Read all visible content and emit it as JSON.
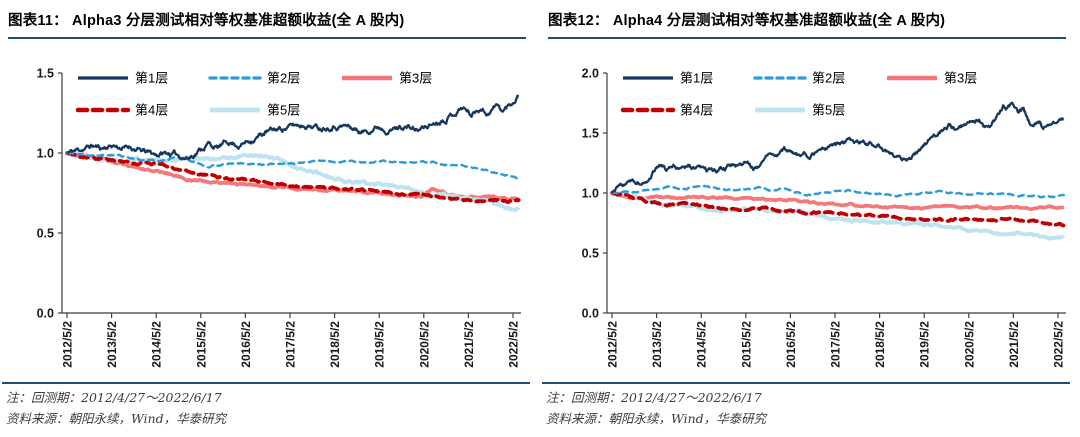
{
  "figures": [
    {
      "title": "图表11：  Alpha3 分层测试相对等权基准超额收益(全 A 股内)",
      "notes": [
        "注：回测期：2012/4/27～2022/6/17",
        "资料来源：朝阳永续，Wind，华泰研究"
      ]
    },
    {
      "title": "图表12：  Alpha4 分层测试相对等权基准超额收益(全 A 股内)",
      "notes": [
        "注：回测期：2012/4/27～2022/6/17",
        "资料来源：朝阳永续，Wind，华泰研究"
      ]
    }
  ],
  "colors": {
    "layer1": "#17375E",
    "layer2": "#2E9BD8",
    "layer3": "#F4787B",
    "layer4": "#C00000",
    "layer5": "#BDE2F0",
    "title_rule": "#1F4E79",
    "axis": "#3F3F3F",
    "note_text": "#3D3D3D"
  },
  "chart_data": [
    {
      "type": "line",
      "title": "Alpha3 分层测试相对等权基准超额收益(全 A 股内)",
      "xlabel": "",
      "ylabel": "",
      "grid": false,
      "legend_position": "top-left",
      "x_range": [
        "2012/4/27",
        "2022/6/17"
      ],
      "ylim": [
        0.0,
        1.5
      ],
      "y_tick_labels": [
        "0.0",
        "0.5",
        "1.0",
        "1.5"
      ],
      "x_tick_labels": [
        "2012/5/2",
        "2013/5/2",
        "2014/5/2",
        "2015/5/2",
        "2016/5/2",
        "2017/5/2",
        "2018/5/2",
        "2019/5/2",
        "2020/5/2",
        "2021/5/2",
        "2022/5/2"
      ],
      "series": [
        {
          "name": "第1层",
          "key": "layer-1",
          "color": "#17375E",
          "dash": "none",
          "width": 2.3,
          "noise": 0.011,
          "x": [
            2012.33,
            2012.6,
            2012.9,
            2013.1,
            2013.35,
            2013.6,
            2013.75,
            2014.0,
            2014.3,
            2014.6,
            2014.9,
            2015.05,
            2015.35,
            2015.5,
            2015.7,
            2015.95,
            2016.2,
            2016.5,
            2016.8,
            2017.1,
            2017.4,
            2017.7,
            2018.0,
            2018.3,
            2018.6,
            2018.95,
            2019.3,
            2019.6,
            2019.9,
            2020.2,
            2020.5,
            2020.8,
            2021.05,
            2021.2,
            2021.4,
            2021.6,
            2021.75,
            2021.95,
            2022.1,
            2022.3,
            2022.46
          ],
          "y": [
            1.0,
            1.02,
            1.045,
            1.03,
            1.05,
            1.03,
            1.04,
            1.01,
            0.99,
            1.0,
            0.98,
            0.97,
            1.03,
            1.06,
            1.03,
            1.07,
            1.05,
            1.09,
            1.13,
            1.15,
            1.17,
            1.18,
            1.16,
            1.18,
            1.17,
            1.13,
            1.17,
            1.15,
            1.17,
            1.14,
            1.18,
            1.22,
            1.26,
            1.29,
            1.24,
            1.29,
            1.25,
            1.3,
            1.26,
            1.31,
            1.37
          ]
        },
        {
          "name": "第2层",
          "key": "layer-2",
          "color": "#2E9BD8",
          "dash": "6 5",
          "width": 2.4,
          "noise": 0.003,
          "x": [
            2012.33,
            2012.7,
            2013.0,
            2013.3,
            2013.7,
            2014.0,
            2014.4,
            2014.8,
            2015.1,
            2015.5,
            2015.9,
            2016.3,
            2016.7,
            2017.1,
            2017.5,
            2017.9,
            2018.3,
            2018.7,
            2019.1,
            2019.5,
            2019.9,
            2020.3,
            2020.6,
            2020.9,
            2021.2,
            2021.6,
            2021.9,
            2022.2,
            2022.46
          ],
          "y": [
            1.0,
            0.99,
            0.98,
            0.99,
            0.97,
            0.96,
            0.95,
            0.97,
            0.95,
            0.915,
            0.93,
            0.94,
            0.93,
            0.93,
            0.94,
            0.95,
            0.94,
            0.95,
            0.94,
            0.95,
            0.94,
            0.95,
            0.94,
            0.92,
            0.92,
            0.9,
            0.88,
            0.86,
            0.84
          ]
        },
        {
          "name": "第3层",
          "key": "layer-3",
          "color": "#F4787B",
          "dash": "none",
          "width": 3.6,
          "noise": 0.004,
          "x": [
            2012.33,
            2012.6,
            2012.9,
            2013.2,
            2013.5,
            2013.8,
            2014.1,
            2014.4,
            2014.7,
            2015.0,
            2015.3,
            2015.6,
            2016.0,
            2016.4,
            2016.8,
            2017.2,
            2017.6,
            2018.0,
            2018.4,
            2018.8,
            2019.2,
            2019.6,
            2020.0,
            2020.3,
            2020.55,
            2020.8,
            2021.1,
            2021.5,
            2021.9,
            2022.2,
            2022.46
          ],
          "y": [
            1.0,
            0.99,
            0.97,
            0.96,
            0.94,
            0.92,
            0.9,
            0.88,
            0.86,
            0.84,
            0.83,
            0.82,
            0.81,
            0.8,
            0.79,
            0.78,
            0.775,
            0.77,
            0.765,
            0.76,
            0.75,
            0.74,
            0.735,
            0.73,
            0.78,
            0.75,
            0.73,
            0.72,
            0.72,
            0.71,
            0.72
          ]
        },
        {
          "name": "第4层",
          "key": "layer-4",
          "color": "#C00000",
          "dash": "9 6",
          "width": 3.6,
          "noise": 0.004,
          "x": [
            2012.33,
            2012.6,
            2012.9,
            2013.2,
            2013.5,
            2013.8,
            2014.1,
            2014.4,
            2014.7,
            2015.0,
            2015.3,
            2015.6,
            2016.0,
            2016.4,
            2016.8,
            2017.2,
            2017.6,
            2018.0,
            2018.4,
            2018.8,
            2019.2,
            2019.6,
            2020.0,
            2020.4,
            2020.8,
            2021.2,
            2021.6,
            2021.9,
            2022.2,
            2022.46
          ],
          "y": [
            1.0,
            0.98,
            0.965,
            0.96,
            0.95,
            0.94,
            0.94,
            0.93,
            0.91,
            0.89,
            0.87,
            0.85,
            0.84,
            0.83,
            0.82,
            0.8,
            0.79,
            0.785,
            0.78,
            0.77,
            0.765,
            0.755,
            0.75,
            0.74,
            0.72,
            0.71,
            0.7,
            0.71,
            0.7,
            0.7
          ]
        },
        {
          "name": "第5层",
          "key": "layer-5",
          "color": "#BDE2F0",
          "dash": "none",
          "width": 3.8,
          "noise": 0.005,
          "x": [
            2012.33,
            2012.7,
            2013.1,
            2013.5,
            2013.9,
            2014.3,
            2014.7,
            2015.1,
            2015.5,
            2015.9,
            2016.3,
            2016.6,
            2016.9,
            2017.1,
            2017.4,
            2017.7,
            2018.0,
            2018.3,
            2018.6,
            2019.0,
            2019.4,
            2019.8,
            2020.1,
            2020.4,
            2020.7,
            2021.0,
            2021.3,
            2021.7,
            2022.0,
            2022.2,
            2022.35,
            2022.46
          ],
          "y": [
            1.0,
            0.98,
            0.96,
            0.95,
            0.96,
            0.95,
            0.96,
            0.97,
            0.96,
            0.97,
            0.98,
            0.99,
            0.98,
            0.96,
            0.92,
            0.89,
            0.87,
            0.84,
            0.82,
            0.81,
            0.8,
            0.79,
            0.77,
            0.73,
            0.74,
            0.73,
            0.72,
            0.7,
            0.68,
            0.65,
            0.64,
            0.65
          ]
        }
      ]
    },
    {
      "type": "line",
      "title": "Alpha4 分层测试相对等权基准超额收益(全 A 股内)",
      "xlabel": "",
      "ylabel": "",
      "grid": false,
      "legend_position": "top-left",
      "x_range": [
        "2012/4/27",
        "2022/6/17"
      ],
      "ylim": [
        0.0,
        2.0
      ],
      "y_tick_labels": [
        "0.0",
        "0.5",
        "1.0",
        "1.5",
        "2.0"
      ],
      "x_tick_labels": [
        "2012/5/2",
        "2013/5/2",
        "2014/5/2",
        "2015/5/2",
        "2016/5/2",
        "2017/5/2",
        "2018/5/2",
        "2019/5/2",
        "2020/5/2",
        "2021/5/2",
        "2022/5/2"
      ],
      "series": [
        {
          "name": "第1层",
          "key": "layer-1",
          "color": "#17375E",
          "dash": "none",
          "width": 2.3,
          "noise": 0.013,
          "x": [
            2012.33,
            2012.6,
            2012.9,
            2013.1,
            2013.25,
            2013.4,
            2013.55,
            2013.8,
            2014.0,
            2014.3,
            2014.6,
            2014.9,
            2015.1,
            2015.35,
            2015.5,
            2015.8,
            2016.0,
            2016.2,
            2016.5,
            2016.8,
            2017.0,
            2017.4,
            2017.75,
            2018.1,
            2018.5,
            2018.8,
            2019.0,
            2019.3,
            2019.55,
            2019.9,
            2020.1,
            2020.35,
            2020.55,
            2020.7,
            2020.9,
            2021.1,
            2021.3,
            2021.45,
            2021.55,
            2021.65,
            2021.78,
            2021.9,
            2022.0,
            2022.15,
            2022.46
          ],
          "y": [
            1.0,
            1.06,
            1.09,
            1.12,
            1.18,
            1.25,
            1.2,
            1.22,
            1.23,
            1.2,
            1.17,
            1.2,
            1.23,
            1.25,
            1.19,
            1.29,
            1.31,
            1.34,
            1.32,
            1.33,
            1.35,
            1.4,
            1.44,
            1.41,
            1.35,
            1.3,
            1.29,
            1.38,
            1.48,
            1.56,
            1.53,
            1.58,
            1.62,
            1.54,
            1.6,
            1.72,
            1.73,
            1.64,
            1.68,
            1.6,
            1.53,
            1.58,
            1.53,
            1.58,
            1.62
          ]
        },
        {
          "name": "第2层",
          "key": "layer-2",
          "color": "#2E9BD8",
          "dash": "6 5",
          "width": 2.4,
          "noise": 0.004,
          "x": [
            2012.33,
            2012.8,
            2013.0,
            2013.6,
            2014.0,
            2014.4,
            2014.8,
            2015.2,
            2015.6,
            2016.0,
            2016.2,
            2016.7,
            2017.2,
            2017.6,
            2018.0,
            2018.4,
            2018.8,
            2019.2,
            2019.6,
            2020.0,
            2020.4,
            2020.8,
            2021.2,
            2021.6,
            2022.0,
            2022.46
          ],
          "y": [
            1.0,
            1.01,
            1.02,
            1.05,
            1.03,
            1.06,
            1.03,
            1.02,
            1.04,
            1.02,
            1.04,
            0.98,
            1.0,
            1.02,
            1.0,
            0.99,
            0.98,
            0.99,
            1.01,
            1.0,
            0.99,
            1.0,
            0.99,
            0.98,
            0.97,
            0.97
          ]
        },
        {
          "name": "第3层",
          "key": "layer-3",
          "color": "#F4787B",
          "dash": "none",
          "width": 3.6,
          "noise": 0.004,
          "x": [
            2012.33,
            2012.8,
            2013.3,
            2013.8,
            2014.3,
            2014.8,
            2015.3,
            2015.8,
            2016.3,
            2016.8,
            2017.3,
            2017.8,
            2018.3,
            2018.8,
            2019.3,
            2019.8,
            2020.3,
            2020.8,
            2021.3,
            2021.8,
            2022.1,
            2022.46
          ],
          "y": [
            1.0,
            0.95,
            0.97,
            0.96,
            0.965,
            0.96,
            0.96,
            0.95,
            0.94,
            0.92,
            0.91,
            0.9,
            0.89,
            0.88,
            0.88,
            0.89,
            0.88,
            0.875,
            0.88,
            0.87,
            0.875,
            0.88
          ]
        },
        {
          "name": "第4层",
          "key": "layer-4",
          "color": "#C00000",
          "dash": "9 6",
          "width": 3.6,
          "noise": 0.005,
          "x": [
            2012.33,
            2012.7,
            2013.0,
            2013.3,
            2013.7,
            2014.1,
            2014.5,
            2014.9,
            2015.3,
            2015.7,
            2016.1,
            2016.5,
            2017.0,
            2017.5,
            2017.9,
            2018.3,
            2018.8,
            2019.2,
            2019.6,
            2020.0,
            2020.4,
            2020.8,
            2021.2,
            2021.6,
            2021.9,
            2022.2,
            2022.46
          ],
          "y": [
            1.0,
            0.97,
            0.94,
            0.92,
            0.9,
            0.91,
            0.89,
            0.87,
            0.86,
            0.87,
            0.85,
            0.84,
            0.83,
            0.83,
            0.82,
            0.81,
            0.8,
            0.79,
            0.77,
            0.78,
            0.78,
            0.77,
            0.78,
            0.77,
            0.76,
            0.74,
            0.73
          ]
        },
        {
          "name": "第5层",
          "key": "layer-5",
          "color": "#BDE2F0",
          "dash": "none",
          "width": 3.8,
          "noise": 0.006,
          "x": [
            2012.33,
            2012.7,
            2013.1,
            2013.5,
            2013.9,
            2014.3,
            2014.7,
            2015.1,
            2015.5,
            2015.9,
            2016.3,
            2016.7,
            2017.1,
            2017.5,
            2017.9,
            2018.3,
            2018.7,
            2019.1,
            2019.5,
            2019.9,
            2020.3,
            2020.7,
            2021.1,
            2021.4,
            2021.8,
            2022.1,
            2022.3,
            2022.46
          ],
          "y": [
            1.0,
            0.97,
            0.94,
            0.91,
            0.89,
            0.87,
            0.85,
            0.86,
            0.87,
            0.85,
            0.84,
            0.83,
            0.8,
            0.78,
            0.77,
            0.76,
            0.76,
            0.75,
            0.73,
            0.72,
            0.7,
            0.68,
            0.65,
            0.66,
            0.64,
            0.62,
            0.63,
            0.65
          ]
        }
      ]
    }
  ]
}
